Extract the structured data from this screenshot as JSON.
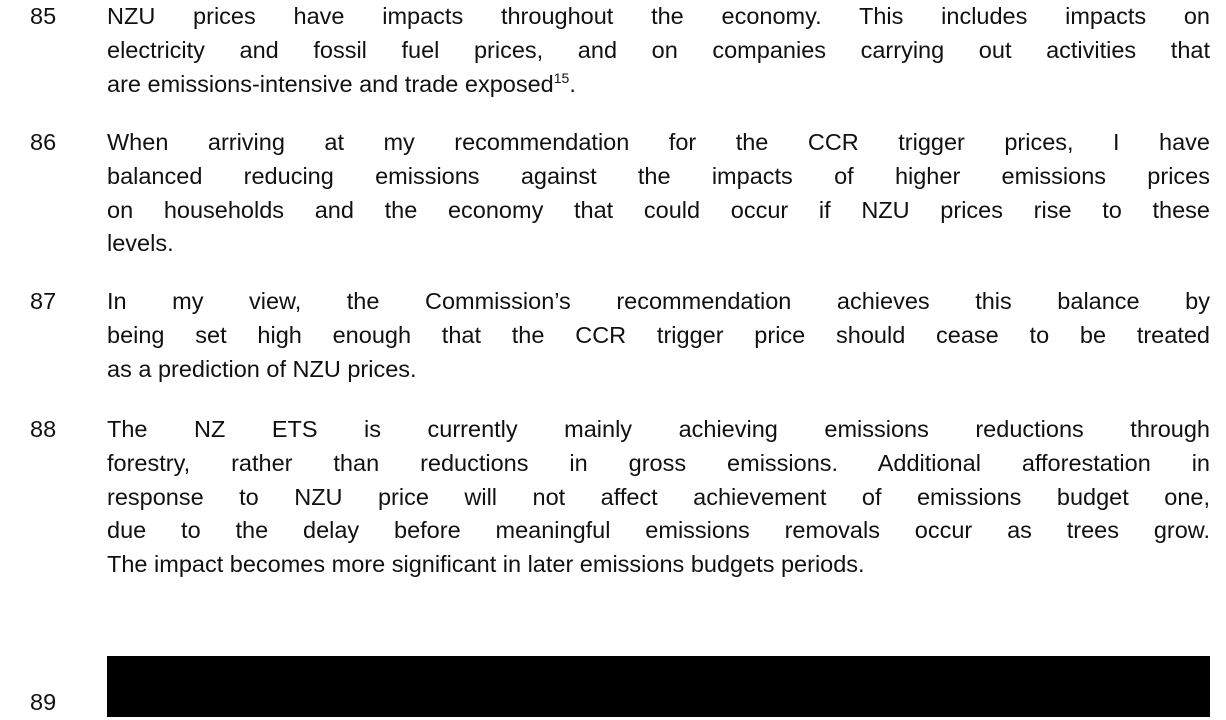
{
  "paragraphs": [
    {
      "number": "85",
      "lines": [
        "NZU prices have impacts throughout the economy. This includes impacts on",
        "electricity and fossil fuel prices, and on companies carrying out activities that",
        "are emissions-intensive and trade exposed"
      ],
      "footnote_ref": "15",
      "end": "."
    },
    {
      "number": "86",
      "lines": [
        "When arriving at my recommendation for the CCR trigger prices, I have",
        "balanced reducing emissions against the impacts of higher emissions prices",
        "on households and the economy that could occur if NZU prices rise to these",
        "levels."
      ]
    },
    {
      "number": "87",
      "lines": [
        "In my view, the Commission’s recommendation achieves this balance by",
        "being set high enough that the CCR trigger price should cease to be treated",
        "as a prediction of NZU prices."
      ]
    },
    {
      "number": "88",
      "lines": [
        "The NZ ETS is currently mainly achieving emissions reductions through",
        "forestry, rather than reductions in gross emissions. Additional afforestation in",
        "response to NZU price will not affect achievement of emissions budget one,",
        "due to the delay before meaningful emissions removals occur as trees grow.",
        "The impact becomes more significant in later emissions budgets periods."
      ]
    }
  ],
  "redacted_paragraph": {
    "number": "89"
  }
}
